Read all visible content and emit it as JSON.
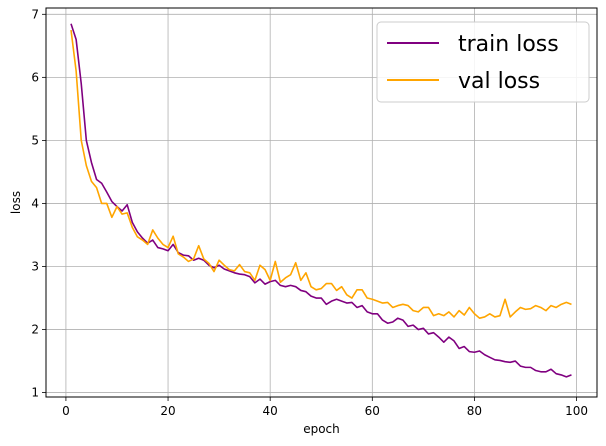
{
  "chart_data": {
    "type": "line",
    "title": "",
    "xlabel": "epoch",
    "ylabel": "loss",
    "xlim": [
      -3.9,
      104
    ],
    "ylim": [
      0.93,
      7.1
    ],
    "xticks": [
      0,
      20,
      40,
      60,
      80,
      100
    ],
    "yticks": [
      1,
      2,
      3,
      4,
      5,
      6,
      7
    ],
    "grid": true,
    "legend_position": "top-right",
    "series": [
      {
        "name": "train loss",
        "color": "#800080",
        "x": [
          1,
          2,
          3,
          4,
          5,
          6,
          7,
          8,
          9,
          10,
          11,
          12,
          13,
          14,
          15,
          16,
          17,
          18,
          19,
          20,
          21,
          22,
          23,
          24,
          25,
          26,
          27,
          28,
          29,
          30,
          31,
          32,
          33,
          34,
          35,
          36,
          37,
          38,
          39,
          40,
          41,
          42,
          43,
          44,
          45,
          46,
          47,
          48,
          49,
          50,
          51,
          52,
          53,
          54,
          55,
          56,
          57,
          58,
          59,
          60,
          61,
          62,
          63,
          64,
          65,
          66,
          67,
          68,
          69,
          70,
          71,
          72,
          73,
          74,
          75,
          76,
          77,
          78,
          79,
          80,
          81,
          82,
          83,
          84,
          85,
          86,
          87,
          88,
          89,
          90,
          91,
          92,
          93,
          94,
          95,
          96,
          97,
          98,
          99
        ],
        "y": [
          6.85,
          6.6,
          5.9,
          5.0,
          4.65,
          4.38,
          4.32,
          4.18,
          4.03,
          3.95,
          3.88,
          3.98,
          3.7,
          3.55,
          3.45,
          3.37,
          3.42,
          3.3,
          3.28,
          3.25,
          3.35,
          3.22,
          3.18,
          3.17,
          3.1,
          3.13,
          3.1,
          3.02,
          2.98,
          3.02,
          2.96,
          2.93,
          2.9,
          2.88,
          2.87,
          2.84,
          2.74,
          2.8,
          2.72,
          2.76,
          2.78,
          2.7,
          2.68,
          2.7,
          2.68,
          2.62,
          2.6,
          2.53,
          2.5,
          2.5,
          2.4,
          2.45,
          2.48,
          2.45,
          2.42,
          2.43,
          2.35,
          2.38,
          2.28,
          2.25,
          2.25,
          2.15,
          2.1,
          2.12,
          2.18,
          2.15,
          2.05,
          2.07,
          2.0,
          2.02,
          1.93,
          1.95,
          1.88,
          1.8,
          1.88,
          1.82,
          1.7,
          1.73,
          1.65,
          1.64,
          1.66,
          1.6,
          1.56,
          1.52,
          1.51,
          1.49,
          1.48,
          1.5,
          1.42,
          1.4,
          1.4,
          1.35,
          1.33,
          1.33,
          1.37,
          1.3,
          1.28,
          1.25,
          1.28
        ]
      },
      {
        "name": "val loss",
        "color": "#ffa500",
        "x": [
          1,
          2,
          3,
          4,
          5,
          6,
          7,
          8,
          9,
          10,
          11,
          12,
          13,
          14,
          15,
          16,
          17,
          18,
          19,
          20,
          21,
          22,
          23,
          24,
          25,
          26,
          27,
          28,
          29,
          30,
          31,
          32,
          33,
          34,
          35,
          36,
          37,
          38,
          39,
          40,
          41,
          42,
          43,
          44,
          45,
          46,
          47,
          48,
          49,
          50,
          51,
          52,
          53,
          54,
          55,
          56,
          57,
          58,
          59,
          60,
          61,
          62,
          63,
          64,
          65,
          66,
          67,
          68,
          69,
          70,
          71,
          72,
          73,
          74,
          75,
          76,
          77,
          78,
          79,
          80,
          81,
          82,
          83,
          84,
          85,
          86,
          87,
          88,
          89,
          90,
          91,
          92,
          93,
          94,
          95,
          96,
          97,
          98,
          99
        ],
        "y": [
          6.75,
          6.1,
          5.0,
          4.6,
          4.35,
          4.25,
          4.0,
          4.0,
          3.78,
          3.95,
          3.83,
          3.85,
          3.62,
          3.47,
          3.42,
          3.35,
          3.58,
          3.45,
          3.35,
          3.3,
          3.48,
          3.2,
          3.15,
          3.08,
          3.12,
          3.33,
          3.12,
          3.05,
          2.92,
          3.1,
          3.02,
          2.95,
          2.93,
          3.03,
          2.92,
          2.9,
          2.78,
          3.02,
          2.95,
          2.78,
          3.08,
          2.75,
          2.82,
          2.87,
          3.06,
          2.78,
          2.9,
          2.68,
          2.63,
          2.65,
          2.73,
          2.73,
          2.62,
          2.68,
          2.55,
          2.5,
          2.63,
          2.63,
          2.5,
          2.48,
          2.45,
          2.42,
          2.43,
          2.35,
          2.38,
          2.4,
          2.38,
          2.3,
          2.28,
          2.35,
          2.35,
          2.22,
          2.25,
          2.22,
          2.28,
          2.2,
          2.3,
          2.23,
          2.35,
          2.25,
          2.18,
          2.2,
          2.25,
          2.2,
          2.22,
          2.48,
          2.2,
          2.28,
          2.35,
          2.32,
          2.33,
          2.38,
          2.35,
          2.3,
          2.38,
          2.35,
          2.4,
          2.43,
          2.4
        ]
      }
    ]
  }
}
